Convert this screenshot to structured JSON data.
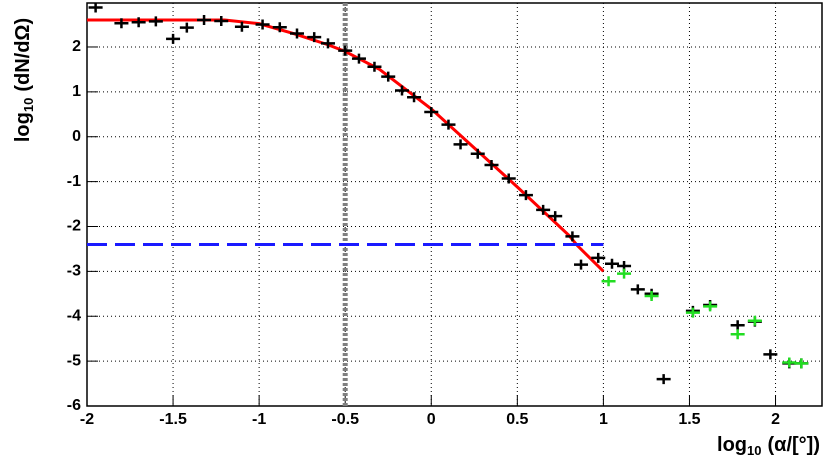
{
  "chart_data": {
    "type": "scatter",
    "x_label": [
      "log",
      "10",
      "(α/[°])"
    ],
    "y_label": [
      "log",
      "10",
      "(dN/dΩ)"
    ],
    "xlim": [
      -2,
      2.27
    ],
    "ylim": [
      -6,
      2.98
    ],
    "xticks": [
      -2,
      -1.5,
      -1,
      -0.5,
      0,
      0.5,
      1,
      1.5,
      2
    ],
    "yticks": [
      -6,
      -5,
      -4,
      -3,
      -2,
      -1,
      0,
      1,
      2
    ],
    "grid": true,
    "series": [
      {
        "color": "#000000",
        "x": [
          -1.95,
          -1.8,
          -1.7,
          -1.6,
          -1.5,
          -1.42,
          -1.32,
          -1.22,
          -1.1,
          -0.98,
          -0.88,
          -0.78,
          -0.68,
          -0.6,
          -0.5,
          -0.42,
          -0.33,
          -0.25,
          -0.17,
          -0.1,
          0,
          0.1,
          0.17,
          0.27,
          0.35,
          0.45,
          0.55,
          0.65,
          0.72,
          0.82,
          0.87,
          0.97,
          1.05,
          1.12,
          1.2,
          1.28,
          1.35,
          1.52,
          1.62,
          1.78,
          1.88,
          1.97,
          2.08,
          2.15
        ],
        "values": [
          2.88,
          2.53,
          2.55,
          2.57,
          2.18,
          2.43,
          2.6,
          2.58,
          2.45,
          2.5,
          2.44,
          2.3,
          2.22,
          2.08,
          1.92,
          1.74,
          1.56,
          1.34,
          1.03,
          0.88,
          0.55,
          0.27,
          -0.17,
          -0.38,
          -0.63,
          -0.93,
          -1.3,
          -1.63,
          -1.77,
          -2.22,
          -2.85,
          -2.7,
          -2.83,
          -2.88,
          -3.4,
          -3.5,
          -5.4,
          -3.88,
          -3.75,
          -4.2,
          -4.12,
          -4.85,
          -5.05,
          -5.05
        ]
      },
      {
        "color": "#22dd22",
        "x": [
          1.03,
          1.12,
          1.28,
          1.52,
          1.62,
          1.78,
          1.88,
          2.08,
          2.15
        ],
        "values": [
          -3.22,
          -3.05,
          -3.55,
          -3.92,
          -3.78,
          -4.4,
          -4.1,
          -5.03,
          -5.05
        ]
      }
    ],
    "lines": [
      {
        "color": "#ff0000",
        "dash": false,
        "x": [
          -2,
          -1.4,
          -1.2,
          -1,
          -0.8,
          -0.6,
          -0.5,
          -0.3,
          0,
          0.5,
          0.8,
          0.85,
          1
        ],
        "values": [
          2.6,
          2.6,
          2.6,
          2.52,
          2.3,
          2.05,
          1.9,
          1.5,
          0.62,
          -1.12,
          -2.2,
          -2.43,
          -3.0
        ]
      },
      {
        "color": "#1a1aff",
        "dash": true,
        "x": [
          -2,
          1
        ],
        "values": [
          -2.4,
          -2.4
        ]
      }
    ],
    "vlines": [
      {
        "x": -0.5,
        "color": "#808080"
      }
    ]
  }
}
